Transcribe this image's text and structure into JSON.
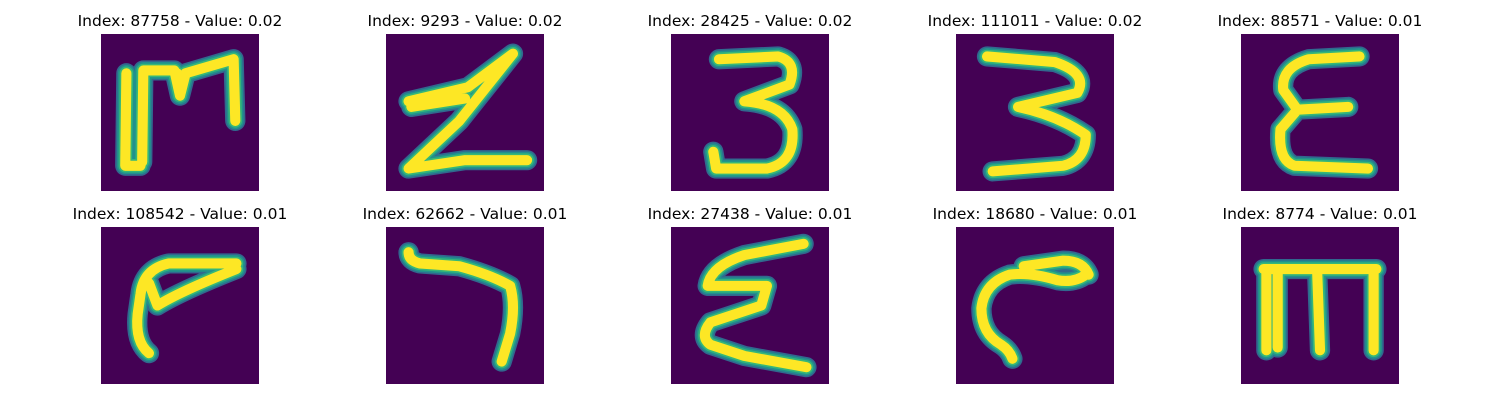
{
  "colors": {
    "background": "#440154",
    "stroke_core": "#fde725",
    "stroke_edge_1": "#35b779",
    "stroke_edge_2": "#21918c",
    "stroke_edge_3": "#31688e"
  },
  "panels": [
    {
      "title": "Index: 87758 - Value: 0.02",
      "glyph": "bracket-m"
    },
    {
      "title": "Index: 9293 - Value: 0.02",
      "glyph": "z-shape"
    },
    {
      "title": "Index: 28425 - Value: 0.02",
      "glyph": "digit-3"
    },
    {
      "title": "Index: 111011 - Value: 0.02",
      "glyph": "digit-3-slanted"
    },
    {
      "title": "Index: 88571 - Value: 0.01",
      "glyph": "epsilon"
    },
    {
      "title": "Index: 108542 - Value: 0.01",
      "glyph": "gamma"
    },
    {
      "title": "Index: 62662 - Value: 0.01",
      "glyph": "seven-like"
    },
    {
      "title": "Index: 27438 - Value: 0.01",
      "glyph": "sigma"
    },
    {
      "title": "Index: 18680 - Value: 0.01",
      "glyph": "c-shape"
    },
    {
      "title": "Index: 8774 - Value: 0.01",
      "glyph": "m-shape"
    }
  ]
}
